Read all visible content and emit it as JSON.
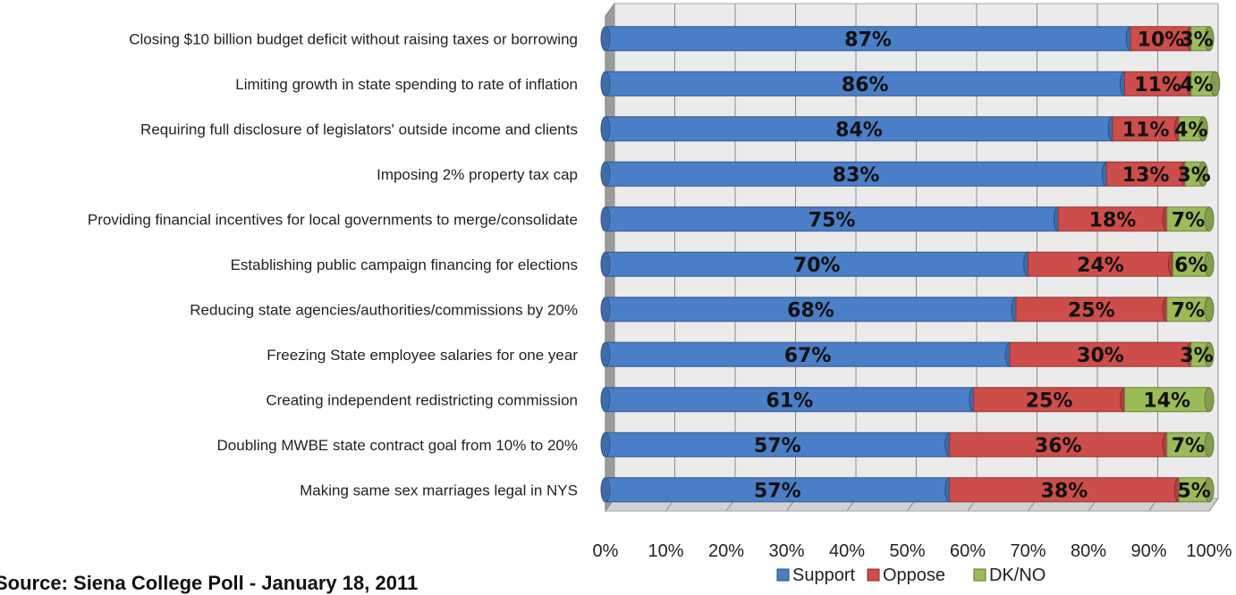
{
  "source_text": "Source: Siena College Poll - January 18, 2011",
  "chart_data": {
    "type": "bar",
    "orientation": "horizontal",
    "stacked": true,
    "percent_scale": true,
    "title": "",
    "xlim": [
      0,
      100
    ],
    "x_ticks": [
      "0%",
      "10%",
      "20%",
      "30%",
      "40%",
      "50%",
      "60%",
      "70%",
      "80%",
      "90%",
      "100%"
    ],
    "grid": true,
    "legend_position": "bottom",
    "categories": [
      "Closing $10 billion budget deficit without raising taxes or borrowing",
      "Limiting growth in state spending to rate of inflation",
      "Requiring full disclosure of legislators' outside income and clients",
      "Imposing 2% property tax cap",
      "Providing financial incentives for local governments to merge/consolidate",
      "Establishing public campaign financing for elections",
      "Reducing state agencies/authorities/commissions by 20%",
      "Freezing State employee salaries for one year",
      "Creating independent redistricting commission",
      "Doubling MWBE state contract goal from 10% to 20%",
      "Making same sex marriages legal in NYS"
    ],
    "series": [
      {
        "name": "Support",
        "color": "#4a7ec7",
        "values": [
          87,
          86,
          84,
          83,
          75,
          70,
          68,
          67,
          61,
          57,
          57
        ]
      },
      {
        "name": "Oppose",
        "color": "#cd4d4a",
        "values": [
          10,
          11,
          11,
          13,
          18,
          24,
          25,
          30,
          25,
          36,
          38
        ]
      },
      {
        "name": "DK/NO",
        "color": "#9bbb59",
        "values": [
          3,
          4,
          4,
          3,
          7,
          6,
          7,
          3,
          14,
          7,
          5
        ]
      }
    ],
    "data_labels": [
      [
        "87%",
        "10%",
        "3%"
      ],
      [
        "86%",
        "11%",
        "4%"
      ],
      [
        "84%",
        "11%",
        "4%"
      ],
      [
        "83%",
        "13%",
        "3%"
      ],
      [
        "75%",
        "18%",
        "7%"
      ],
      [
        "70%",
        "24%",
        "6%"
      ],
      [
        "68%",
        "25%",
        "7%"
      ],
      [
        "67%",
        "30%",
        "3%"
      ],
      [
        "61%",
        "25%",
        "14%"
      ],
      [
        "57%",
        "36%",
        "7%"
      ],
      [
        "57%",
        "38%",
        "5%"
      ]
    ]
  }
}
